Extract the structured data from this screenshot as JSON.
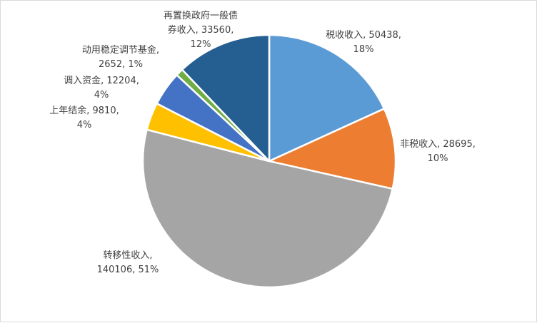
{
  "chart_data": {
    "type": "pie",
    "title": "",
    "legend": "none",
    "slices": [
      {
        "name": "税收收入",
        "value": 50438,
        "percent": "18%",
        "color": "#5b9bd5",
        "label_lines": [
          "税收收入, 50438,",
          "18%"
        ]
      },
      {
        "name": "非税收入",
        "value": 28695,
        "percent": "10%",
        "color": "#ed7d31",
        "label_lines": [
          "非税收入, 28695,",
          "10%"
        ]
      },
      {
        "name": "转移性收入",
        "value": 140106,
        "percent": "51%",
        "color": "#a5a5a5",
        "label_lines": [
          "转移性收入,",
          "140106, 51%"
        ]
      },
      {
        "name": "上年结余",
        "value": 9810,
        "percent": "4%",
        "color": "#ffc000",
        "label_lines": [
          "上年结余, 9810,",
          "4%"
        ]
      },
      {
        "name": "调入资金",
        "value": 12204,
        "percent": "4%",
        "color": "#4472c4",
        "label_lines": [
          "调入资金, 12204,",
          "4%"
        ]
      },
      {
        "name": "动用稳定调节基金",
        "value": 2652,
        "percent": "1%",
        "color": "#70ad47",
        "label_lines": [
          "动用稳定调节基金,",
          "2652, 1%"
        ]
      },
      {
        "name": "再置换政府一般债券收入",
        "value": 33560,
        "percent": "12%",
        "color": "#255e91",
        "label_lines": [
          "再置换政府一般债",
          "券收入, 33560,",
          "12%"
        ]
      }
    ]
  }
}
